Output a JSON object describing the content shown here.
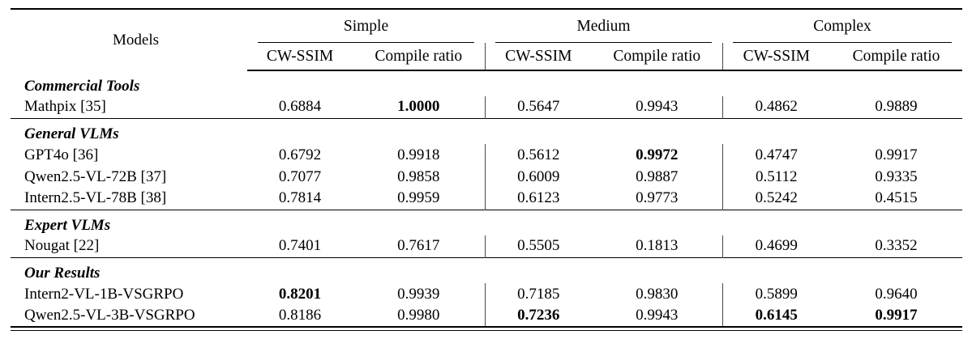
{
  "colors": {
    "background": "#ffffff",
    "text": "#000000",
    "rule": "#000000",
    "group_divider": "#4a4a4a"
  },
  "table": {
    "corner_label": "Models",
    "groups": [
      {
        "label": "Simple"
      },
      {
        "label": "Medium"
      },
      {
        "label": "Complex"
      }
    ],
    "metric_headers": [
      "CW-SSIM",
      "Compile ratio",
      "CW-SSIM",
      "Compile ratio",
      "CW-SSIM",
      "Compile ratio"
    ],
    "sections": [
      {
        "label": "Commercial Tools",
        "rows": [
          {
            "model": "Mathpix [35]",
            "values": [
              "0.6884",
              "1.0000",
              "0.5647",
              "0.9943",
              "0.4862",
              "0.9889"
            ],
            "bold": [
              false,
              true,
              false,
              false,
              false,
              false
            ]
          }
        ]
      },
      {
        "label": "General VLMs",
        "rows": [
          {
            "model": "GPT4o [36]",
            "values": [
              "0.6792",
              "0.9918",
              "0.5612",
              "0.9972",
              "0.4747",
              "0.9917"
            ],
            "bold": [
              false,
              false,
              false,
              true,
              false,
              false
            ]
          },
          {
            "model": "Qwen2.5-VL-72B [37]",
            "values": [
              "0.7077",
              "0.9858",
              "0.6009",
              "0.9887",
              "0.5112",
              "0.9335"
            ],
            "bold": [
              false,
              false,
              false,
              false,
              false,
              false
            ]
          },
          {
            "model": "Intern2.5-VL-78B [38]",
            "values": [
              "0.7814",
              "0.9959",
              "0.6123",
              "0.9773",
              "0.5242",
              "0.4515"
            ],
            "bold": [
              false,
              false,
              false,
              false,
              false,
              false
            ]
          }
        ]
      },
      {
        "label": "Expert VLMs",
        "rows": [
          {
            "model": "Nougat [22]",
            "values": [
              "0.7401",
              "0.7617",
              "0.5505",
              "0.1813",
              "0.4699",
              "0.3352"
            ],
            "bold": [
              false,
              false,
              false,
              false,
              false,
              false
            ]
          }
        ]
      },
      {
        "label": "Our Results",
        "rows": [
          {
            "model": "Intern2-VL-1B-VSGRPO",
            "values": [
              "0.8201",
              "0.9939",
              "0.7185",
              "0.9830",
              "0.5899",
              "0.9640"
            ],
            "bold": [
              true,
              false,
              false,
              false,
              false,
              false
            ]
          },
          {
            "model": "Qwen2.5-VL-3B-VSGRPO",
            "values": [
              "0.8186",
              "0.9980",
              "0.7236",
              "0.9943",
              "0.6145",
              "0.9917"
            ],
            "bold": [
              false,
              false,
              true,
              false,
              true,
              true
            ]
          }
        ]
      }
    ]
  }
}
